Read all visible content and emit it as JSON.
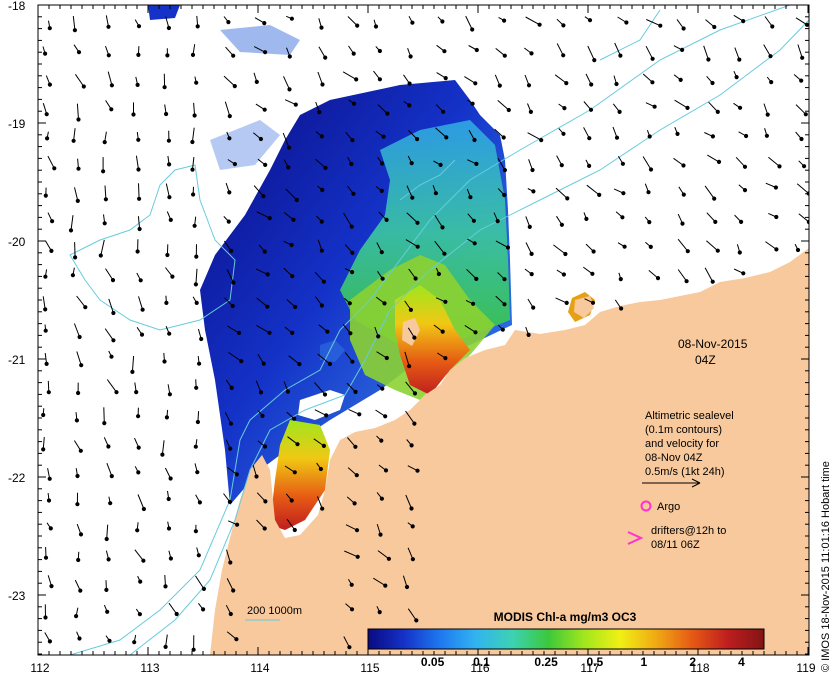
{
  "map": {
    "date_label": "08-Nov-2015",
    "time_label": "04Z",
    "credit": "© IMOS 18-Nov-2015 11:01:16 Hobart time",
    "x_ticks": [
      "112",
      "113",
      "114",
      "115",
      "116",
      "117",
      "118",
      "119"
    ],
    "y_ticks": [
      "-18",
      "-19",
      "-20",
      "-21",
      "-22",
      "-23"
    ],
    "x_range": [
      112,
      119
    ],
    "y_range": [
      -23.5,
      -18
    ],
    "colors": {
      "land": "#f8c99c",
      "contour": "#66ccdd",
      "argo": "#ff33cc",
      "drifter": "#ff33cc"
    }
  },
  "legend": {
    "lines": [
      "Altimetric sealevel",
      "(0.1m contours)",
      "and velocity for",
      "08-Nov 04Z",
      "0.5m/s (1kt 24h)"
    ],
    "argo_label": "Argo",
    "drifter_lines": [
      "drifters@12h to",
      "08/11 06Z"
    ]
  },
  "scale": {
    "label": "200  1000m"
  },
  "colorbar": {
    "title": "MODIS Chl-a mg/m3 OC3",
    "ticks": [
      "0.05",
      "0.1",
      "0.25",
      "0.5",
      "1",
      "2",
      "4"
    ],
    "tick_values": [
      0.05,
      0.1,
      0.25,
      0.5,
      1,
      2,
      4
    ],
    "range": [
      0.02,
      5.5
    ],
    "stops": [
      "#0a0a80",
      "#1432c8",
      "#1e78f0",
      "#32b4f0",
      "#3cd2b4",
      "#3cc83c",
      "#a0e61e",
      "#f0f014",
      "#f0aa14",
      "#e65a14",
      "#be1e1e",
      "#821414"
    ]
  }
}
